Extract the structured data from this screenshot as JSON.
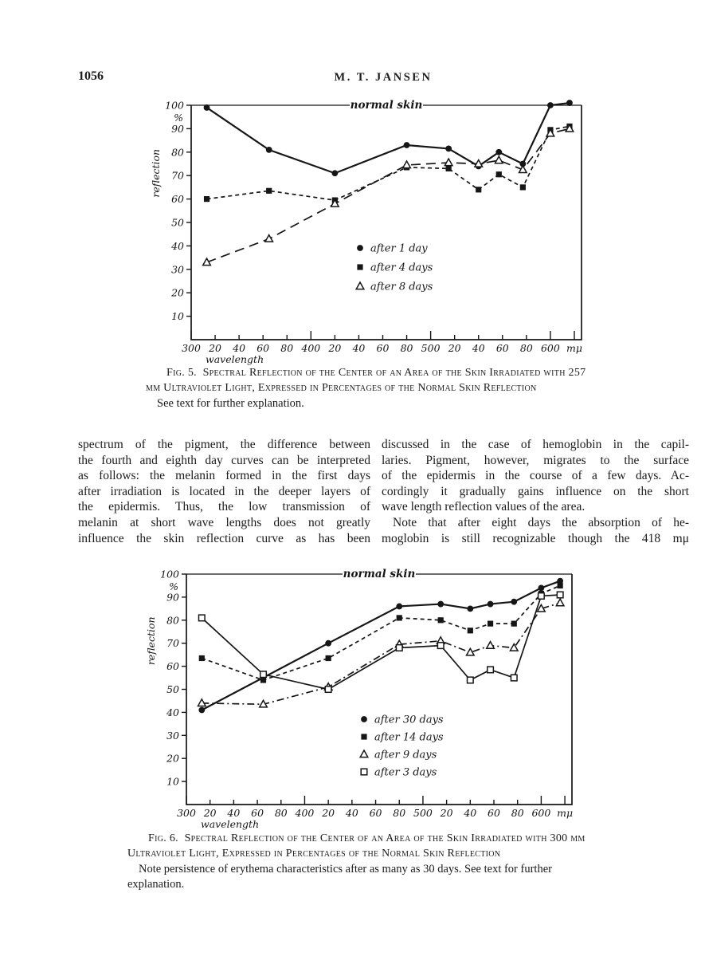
{
  "page": {
    "number": "1056",
    "running_head": "M. T. JANSEN"
  },
  "figure5": {
    "caption_label": "Fig. 5.",
    "caption_body": "Spectral Reflection of the Center of an Area of the Skin Irradiated with 257 mμ Ultraviolet Light, Expressed in Percentages of the Normal Skin Reflection",
    "caption_note": "See text for further explanation."
  },
  "figure6": {
    "caption_label": "Fig. 6.",
    "caption_body": "Spectral Reflection of the Center of an Area of the Skin Irradiated with 300 mμ Ultraviolet Light, Expressed in Percentages of the Normal Skin Reflection",
    "caption_note": "Note persistence of erythema characteristics after as many as 30 days. See text for further explanation."
  },
  "body_text": {
    "left_column": [
      "spectrum of the pigment, the difference between",
      "the fourth and eighth day curves can be interpreted",
      "as follows: the melanin formed in the first days",
      "after irradiation is located in the deeper layers of",
      "the epidermis. Thus, the low transmission of",
      "melanin at short wave lengths does not greatly",
      "influence the skin reflection curve as has been"
    ],
    "right_column_p1": [
      "discussed in the case of hemoglobin in the capil-",
      "laries. Pigment, however, migrates to the surface",
      "of the epidermis in the course of a few days. Ac-",
      "cordingly it gradually gains influence on the short",
      "wave length reflection values of the area."
    ],
    "right_column_p2": [
      "Note that after eight days the absorption of he-",
      "moglobin is still recognizable though the 418 mμ"
    ]
  },
  "chart_data": [
    {
      "id": "fig5-chart",
      "type": "line",
      "annotation": "normal skin",
      "ylabel": "reflection",
      "percent_label": "%",
      "xlabel": "wavelength",
      "x_unit": "mμ",
      "xlim": [
        300,
        626
      ],
      "ylim": [
        0,
        100
      ],
      "grid": false,
      "legend_position": "inside-center-right",
      "yticks": [
        10,
        20,
        30,
        40,
        50,
        60,
        70,
        80,
        90,
        100
      ],
      "xticks": [
        {
          "v": 300,
          "l": "300",
          "m": 1
        },
        {
          "v": 320,
          "l": "20"
        },
        {
          "v": 340,
          "l": "40"
        },
        {
          "v": 360,
          "l": "60"
        },
        {
          "v": 380,
          "l": "80"
        },
        {
          "v": 400,
          "l": "400",
          "m": 1
        },
        {
          "v": 420,
          "l": "20"
        },
        {
          "v": 440,
          "l": "40"
        },
        {
          "v": 460,
          "l": "60"
        },
        {
          "v": 480,
          "l": "80"
        },
        {
          "v": 500,
          "l": "500",
          "m": 1
        },
        {
          "v": 520,
          "l": "20"
        },
        {
          "v": 540,
          "l": "40"
        },
        {
          "v": 560,
          "l": "60"
        },
        {
          "v": 580,
          "l": "80"
        },
        {
          "v": 600,
          "l": "600",
          "m": 1
        },
        {
          "v": 620,
          "l": "mμ",
          "m": 1
        }
      ],
      "plot": {
        "l": 60,
        "r": 550,
        "t": 14,
        "b": 308
      },
      "legend_pos": {
        "x": 272,
        "y": 193,
        "dy": 24
      },
      "series": [
        {
          "label": "after 1 day",
          "marker": "filled-circle",
          "dash": "",
          "width": 2.2,
          "points": [
            [
              313,
              99
            ],
            [
              365,
              81
            ],
            [
              420,
              71
            ],
            [
              480,
              83
            ],
            [
              515,
              81.5
            ],
            [
              540,
              74
            ],
            [
              557,
              80
            ],
            [
              577,
              75
            ],
            [
              600,
              100
            ],
            [
              616,
              101
            ]
          ]
        },
        {
          "label": "after 4 days",
          "marker": "filled-square",
          "dash": "5,4",
          "width": 1.7,
          "points": [
            [
              313,
              60
            ],
            [
              365,
              63.5
            ],
            [
              420,
              59.5
            ],
            [
              480,
              73.5
            ],
            [
              515,
              73
            ],
            [
              540,
              64
            ],
            [
              557,
              70.5
            ],
            [
              577,
              65
            ],
            [
              600,
              89.5
            ],
            [
              616,
              91
            ]
          ]
        },
        {
          "label": "after 8 days",
          "marker": "open-triangle",
          "dash": "12,7",
          "width": 1.7,
          "points": [
            [
              313,
              33
            ],
            [
              365,
              43
            ],
            [
              420,
              58
            ],
            [
              480,
              74.5
            ],
            [
              515,
              75.5
            ],
            [
              540,
              75
            ],
            [
              557,
              76.5
            ],
            [
              577,
              72.5
            ],
            [
              600,
              88
            ],
            [
              616,
              90
            ]
          ]
        }
      ]
    },
    {
      "id": "fig6-chart",
      "type": "line",
      "annotation": "normal skin",
      "ylabel": "reflection",
      "percent_label": "%",
      "xlabel": "wavelength",
      "x_unit": "mμ",
      "xlim": [
        300,
        626
      ],
      "ylim": [
        0,
        100
      ],
      "grid": false,
      "legend_position": "inside-center-right",
      "yticks": [
        10,
        20,
        30,
        40,
        50,
        60,
        70,
        80,
        90,
        100
      ],
      "xticks": [
        {
          "v": 300,
          "l": "300",
          "m": 1
        },
        {
          "v": 320,
          "l": "20"
        },
        {
          "v": 340,
          "l": "40"
        },
        {
          "v": 360,
          "l": "60"
        },
        {
          "v": 380,
          "l": "80"
        },
        {
          "v": 400,
          "l": "400",
          "m": 1
        },
        {
          "v": 420,
          "l": "20"
        },
        {
          "v": 440,
          "l": "40"
        },
        {
          "v": 460,
          "l": "60"
        },
        {
          "v": 480,
          "l": "80"
        },
        {
          "v": 500,
          "l": "500",
          "m": 1
        },
        {
          "v": 520,
          "l": "20"
        },
        {
          "v": 540,
          "l": "40"
        },
        {
          "v": 560,
          "l": "60"
        },
        {
          "v": 580,
          "l": "80"
        },
        {
          "v": 600,
          "l": "600",
          "m": 1
        },
        {
          "v": 620,
          "l": "mμ",
          "m": 1
        }
      ],
      "plot": {
        "l": 62,
        "r": 546,
        "t": 14,
        "b": 303
      },
      "legend_pos": {
        "x": 285,
        "y": 196,
        "dy": 22
      },
      "series": [
        {
          "label": "after 30 days",
          "marker": "filled-circle",
          "dash": "",
          "width": 2.2,
          "points": [
            [
              313,
              41
            ],
            [
              420,
              70
            ],
            [
              480,
              86
            ],
            [
              515,
              87
            ],
            [
              540,
              85
            ],
            [
              557,
              87
            ],
            [
              577,
              88
            ],
            [
              600,
              94
            ],
            [
              616,
              97
            ]
          ]
        },
        {
          "label": "after 14 days",
          "marker": "filled-square",
          "dash": "5,4",
          "width": 1.7,
          "points": [
            [
              313,
              63.5
            ],
            [
              365,
              54
            ],
            [
              420,
              63.5
            ],
            [
              480,
              81
            ],
            [
              515,
              80
            ],
            [
              540,
              75.5
            ],
            [
              557,
              78.5
            ],
            [
              577,
              78.5
            ],
            [
              600,
              91.5
            ],
            [
              616,
              95
            ]
          ]
        },
        {
          "label": "after 9 days",
          "marker": "open-triangle",
          "dash": "9,4,2,4",
          "width": 1.7,
          "points": [
            [
              313,
              44
            ],
            [
              365,
              43.5
            ],
            [
              420,
              51
            ],
            [
              480,
              69.5
            ],
            [
              515,
              71
            ],
            [
              540,
              66
            ],
            [
              557,
              69
            ],
            [
              577,
              68
            ],
            [
              600,
              85
            ],
            [
              616,
              87.5
            ]
          ]
        },
        {
          "label": "after 3 days",
          "marker": "open-square",
          "dash": "",
          "width": 1.7,
          "points": [
            [
              313,
              81
            ],
            [
              365,
              56.5
            ],
            [
              420,
              50
            ],
            [
              480,
              68
            ],
            [
              515,
              69
            ],
            [
              540,
              54
            ],
            [
              557,
              58.5
            ],
            [
              577,
              55
            ],
            [
              600,
              90.5
            ],
            [
              616,
              91
            ]
          ]
        }
      ]
    }
  ]
}
